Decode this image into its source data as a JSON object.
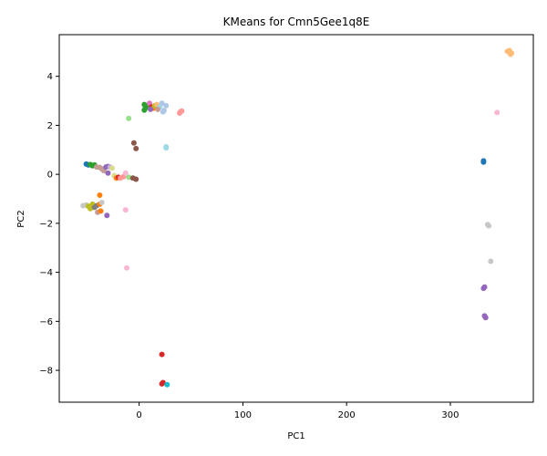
{
  "chart_data": {
    "type": "scatter",
    "title": "KMeans for Cmn5Gee1q8E",
    "xlabel": "PC1",
    "ylabel": "PC2",
    "xlim": [
      -77,
      380
    ],
    "ylim": [
      -9.3,
      5.7
    ],
    "xticks": [
      0,
      100,
      200,
      300
    ],
    "yticks": [
      -8,
      -6,
      -4,
      -2,
      0,
      2,
      4
    ],
    "grid": false,
    "points": [
      {
        "x": 356,
        "y": 5.0,
        "color": "#ffbb78"
      },
      {
        "x": 358,
        "y": 4.9,
        "color": "#ffbb78"
      },
      {
        "x": 357,
        "y": 5.05,
        "color": "#ffbb78"
      },
      {
        "x": 359,
        "y": 4.95,
        "color": "#ffbb78"
      },
      {
        "x": 355,
        "y": 5.02,
        "color": "#ffbb78"
      },
      {
        "x": 345,
        "y": 2.52,
        "color": "#f7b6d2"
      },
      {
        "x": 332,
        "y": 0.55,
        "color": "#1f77b4"
      },
      {
        "x": 332,
        "y": 0.5,
        "color": "#1f77b4"
      },
      {
        "x": 336,
        "y": -2.05,
        "color": "#c7c7c7"
      },
      {
        "x": 337,
        "y": -2.1,
        "color": "#c7c7c7"
      },
      {
        "x": 339,
        "y": -3.55,
        "color": "#c7c7c7"
      },
      {
        "x": 333,
        "y": -4.6,
        "color": "#9467bd"
      },
      {
        "x": 332,
        "y": -4.65,
        "color": "#9467bd"
      },
      {
        "x": 333,
        "y": -5.78,
        "color": "#9467bd"
      },
      {
        "x": 334,
        "y": -5.85,
        "color": "#9467bd"
      },
      {
        "x": 22,
        "y": -7.35,
        "color": "#d62728"
      },
      {
        "x": 23,
        "y": -8.5,
        "color": "#d62728"
      },
      {
        "x": 22,
        "y": -8.55,
        "color": "#d62728"
      },
      {
        "x": 27,
        "y": -8.58,
        "color": "#17becf"
      },
      {
        "x": 5,
        "y": 2.85,
        "color": "#2ca02c"
      },
      {
        "x": 6,
        "y": 2.7,
        "color": "#2ca02c"
      },
      {
        "x": 5,
        "y": 2.62,
        "color": "#2ca02c"
      },
      {
        "x": 7,
        "y": 2.8,
        "color": "#2ca02c"
      },
      {
        "x": 10,
        "y": 2.9,
        "color": "#e377c2"
      },
      {
        "x": 12,
        "y": 2.75,
        "color": "#d62728"
      },
      {
        "x": 14,
        "y": 2.7,
        "color": "#ff7f0e"
      },
      {
        "x": 15,
        "y": 2.8,
        "color": "#bcbd22"
      },
      {
        "x": 17,
        "y": 2.85,
        "color": "#ffbb78"
      },
      {
        "x": 20,
        "y": 2.75,
        "color": "#9edae5"
      },
      {
        "x": 22,
        "y": 2.9,
        "color": "#aec7e8"
      },
      {
        "x": 24,
        "y": 2.6,
        "color": "#aec7e8"
      },
      {
        "x": 26,
        "y": 2.8,
        "color": "#aec7e8"
      },
      {
        "x": 23,
        "y": 2.55,
        "color": "#aec7e8"
      },
      {
        "x": 18,
        "y": 2.65,
        "color": "#c49c94"
      },
      {
        "x": 11,
        "y": 2.65,
        "color": "#9467bd"
      },
      {
        "x": 39,
        "y": 2.5,
        "color": "#ff9896"
      },
      {
        "x": 41,
        "y": 2.58,
        "color": "#ff9896"
      },
      {
        "x": 40,
        "y": 2.55,
        "color": "#ff9896"
      },
      {
        "x": -10,
        "y": 2.28,
        "color": "#98df8a"
      },
      {
        "x": 26,
        "y": 1.12,
        "color": "#9edae5"
      },
      {
        "x": 26,
        "y": 1.08,
        "color": "#9edae5"
      },
      {
        "x": -5,
        "y": 1.28,
        "color": "#8c564b"
      },
      {
        "x": -3,
        "y": 1.05,
        "color": "#8c564b"
      },
      {
        "x": -51,
        "y": 0.42,
        "color": "#1f77b4"
      },
      {
        "x": -49,
        "y": 0.38,
        "color": "#1f77b4"
      },
      {
        "x": -47,
        "y": 0.4,
        "color": "#2ca02c"
      },
      {
        "x": -45,
        "y": 0.35,
        "color": "#2ca02c"
      },
      {
        "x": -43,
        "y": 0.38,
        "color": "#2ca02c"
      },
      {
        "x": -41,
        "y": 0.3,
        "color": "#c49c94"
      },
      {
        "x": -38,
        "y": 0.28,
        "color": "#c49c94"
      },
      {
        "x": -36,
        "y": 0.22,
        "color": "#c49c94"
      },
      {
        "x": -34,
        "y": 0.15,
        "color": "#c49c94"
      },
      {
        "x": -32,
        "y": 0.3,
        "color": "#9467bd"
      },
      {
        "x": -30,
        "y": 0.32,
        "color": "#9467bd"
      },
      {
        "x": -28,
        "y": 0.3,
        "color": "#c5b0d5"
      },
      {
        "x": -30,
        "y": 0.05,
        "color": "#9467bd"
      },
      {
        "x": -26,
        "y": 0.25,
        "color": "#dbdb8d"
      },
      {
        "x": -24,
        "y": -0.05,
        "color": "#dbdb8d"
      },
      {
        "x": -22,
        "y": -0.15,
        "color": "#ff7f0e"
      },
      {
        "x": -20,
        "y": -0.12,
        "color": "#d62728"
      },
      {
        "x": -18,
        "y": -0.15,
        "color": "#ff9896"
      },
      {
        "x": -15,
        "y": -0.1,
        "color": "#ff9896"
      },
      {
        "x": -13,
        "y": 0.05,
        "color": "#f7b6d2"
      },
      {
        "x": -10,
        "y": -0.12,
        "color": "#98df8a"
      },
      {
        "x": -6,
        "y": -0.15,
        "color": "#8c564b"
      },
      {
        "x": -3,
        "y": -0.2,
        "color": "#8c564b"
      },
      {
        "x": -54,
        "y": -1.28,
        "color": "#c7c7c7"
      },
      {
        "x": -51,
        "y": -1.25,
        "color": "#c7c7c7"
      },
      {
        "x": -49,
        "y": -1.3,
        "color": "#bcbd22"
      },
      {
        "x": -47,
        "y": -1.4,
        "color": "#bcbd22"
      },
      {
        "x": -45,
        "y": -1.22,
        "color": "#bcbd22"
      },
      {
        "x": -43,
        "y": -1.35,
        "color": "#7f7f7f"
      },
      {
        "x": -41,
        "y": -1.28,
        "color": "#7f7f7f"
      },
      {
        "x": -40,
        "y": -1.55,
        "color": "#c49c94"
      },
      {
        "x": -38,
        "y": -1.22,
        "color": "#ff7f0e"
      },
      {
        "x": -36,
        "y": -1.15,
        "color": "#c7c7c7"
      },
      {
        "x": -37,
        "y": -1.5,
        "color": "#ff7f0e"
      },
      {
        "x": -38,
        "y": -0.85,
        "color": "#ff7f0e"
      },
      {
        "x": -31,
        "y": -1.68,
        "color": "#9467bd"
      },
      {
        "x": -13,
        "y": -1.45,
        "color": "#f7b6d2"
      },
      {
        "x": -12,
        "y": -3.82,
        "color": "#f7b6d2"
      }
    ]
  }
}
